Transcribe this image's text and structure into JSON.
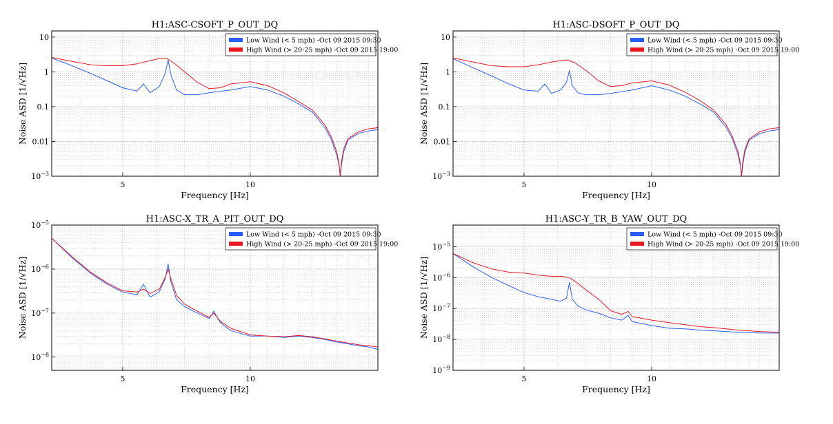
{
  "figure": {
    "legend_entries": [
      {
        "label": "Low Wind (< 5 mph) -Oct 09 2015 09:30",
        "color": "#2a5df5"
      },
      {
        "label": "High Wind (> 20-25 mph) -Oct 09 2015 19:00",
        "color": "#e81620"
      }
    ]
  },
  "chart_data": [
    {
      "type": "line",
      "title": "H1:ASC-CSOFT_P_OUT_DQ",
      "xlabel": "Frequency [Hz]",
      "ylabel": "Noise ASD [1/√Hz]",
      "xscale": "log",
      "yscale": "log",
      "xlim": [
        3.4,
        20
      ],
      "ylim": [
        0.001,
        15
      ],
      "xticks": [
        5,
        10
      ],
      "xtick_labels": [
        "5",
        "10"
      ],
      "yticks": [
        0.001,
        0.01,
        0.1,
        1,
        10
      ],
      "ytick_labels": [
        "10^-3",
        "0.01",
        "0.1",
        "1",
        "10"
      ],
      "grid": true,
      "legend_position": "top-right",
      "series": [
        {
          "name": "Low Wind (< 5 mph) -Oct 09 2015 09:30",
          "color": "#2a5df5",
          "x": [
            3.4,
            3.8,
            4.2,
            4.6,
            5,
            5.4,
            5.6,
            5.8,
            6.1,
            6.3,
            6.4,
            6.5,
            6.7,
            7,
            7.5,
            8,
            9,
            10,
            11,
            12,
            13,
            14,
            15,
            15.5,
            16,
            16.2,
            16.3,
            16.4,
            16.6,
            17,
            18,
            19,
            20
          ],
          "y": [
            2.5,
            1.5,
            0.9,
            0.55,
            0.35,
            0.28,
            0.45,
            0.25,
            0.38,
            0.9,
            2.2,
            0.8,
            0.3,
            0.22,
            0.22,
            0.25,
            0.3,
            0.38,
            0.3,
            0.2,
            0.12,
            0.07,
            0.025,
            0.012,
            0.004,
            0.002,
            0.001,
            0.002,
            0.005,
            0.011,
            0.017,
            0.02,
            0.022
          ]
        },
        {
          "name": "High Wind (> 20-25 mph) -Oct 09 2015 19:00",
          "color": "#e81620",
          "x": [
            3.4,
            3.8,
            4.2,
            4.6,
            5,
            5.4,
            5.8,
            6.1,
            6.3,
            6.4,
            6.6,
            7,
            7.5,
            8,
            8.5,
            9,
            10,
            11,
            12,
            13,
            14,
            15,
            15.5,
            16,
            16.2,
            16.3,
            16.4,
            16.6,
            17,
            18,
            19,
            20
          ],
          "y": [
            2.6,
            2.0,
            1.6,
            1.5,
            1.5,
            1.7,
            2.1,
            2.4,
            2.5,
            2.3,
            1.8,
            1.0,
            0.5,
            0.33,
            0.35,
            0.45,
            0.52,
            0.4,
            0.25,
            0.14,
            0.08,
            0.03,
            0.014,
            0.005,
            0.0022,
            0.001,
            0.0025,
            0.006,
            0.012,
            0.019,
            0.023,
            0.025
          ]
        }
      ]
    },
    {
      "type": "line",
      "title": "H1:ASC-DSOFT_P_OUT_DQ",
      "xlabel": "Frequency [Hz]",
      "ylabel": "Noise ASD [1/√Hz]",
      "xscale": "log",
      "yscale": "log",
      "xlim": [
        3.4,
        20
      ],
      "ylim": [
        0.001,
        15
      ],
      "xticks": [
        5,
        10
      ],
      "xtick_labels": [
        "5",
        "10"
      ],
      "yticks": [
        0.001,
        0.01,
        0.1,
        1,
        10
      ],
      "ytick_labels": [
        "10^-3",
        "0.01",
        "0.1",
        "1",
        "10"
      ],
      "grid": true,
      "legend_position": "top-right",
      "series": [
        {
          "name": "Low Wind (< 5 mph) -Oct 09 2015 09:30",
          "color": "#2a5df5",
          "x": [
            3.4,
            3.8,
            4.2,
            4.6,
            5,
            5.4,
            5.6,
            5.8,
            6.1,
            6.3,
            6.4,
            6.5,
            6.7,
            7,
            7.5,
            8,
            9,
            10,
            11,
            12,
            13,
            14,
            15,
            15.5,
            16,
            16.2,
            16.3,
            16.4,
            16.6,
            17,
            18,
            19,
            20
          ],
          "y": [
            2.4,
            1.3,
            0.75,
            0.45,
            0.3,
            0.28,
            0.45,
            0.24,
            0.3,
            0.5,
            1.1,
            0.4,
            0.25,
            0.22,
            0.22,
            0.24,
            0.3,
            0.4,
            0.3,
            0.2,
            0.12,
            0.07,
            0.025,
            0.012,
            0.004,
            0.002,
            0.001,
            0.002,
            0.005,
            0.011,
            0.017,
            0.02,
            0.022
          ]
        },
        {
          "name": "High Wind (> 20-25 mph) -Oct 09 2015 19:00",
          "color": "#e81620",
          "x": [
            3.4,
            3.8,
            4.2,
            4.6,
            5,
            5.4,
            5.8,
            6.1,
            6.3,
            6.4,
            6.6,
            7,
            7.5,
            8,
            8.5,
            9,
            10,
            11,
            12,
            13,
            14,
            15,
            15.5,
            16,
            16.2,
            16.3,
            16.4,
            16.6,
            17,
            18,
            19,
            20
          ],
          "y": [
            2.5,
            1.9,
            1.5,
            1.4,
            1.4,
            1.6,
            1.9,
            2.1,
            2.2,
            2.1,
            1.8,
            1.1,
            0.55,
            0.38,
            0.4,
            0.48,
            0.55,
            0.42,
            0.26,
            0.15,
            0.08,
            0.03,
            0.014,
            0.005,
            0.0022,
            0.001,
            0.0025,
            0.006,
            0.012,
            0.019,
            0.023,
            0.025
          ]
        }
      ]
    },
    {
      "type": "line",
      "title": "H1:ASC-X_TR_A_PIT_OUT_DQ",
      "xlabel": "Frequency [Hz]",
      "ylabel": "Noise ASD [1/√Hz]",
      "xscale": "log",
      "yscale": "log",
      "xlim": [
        3.4,
        20
      ],
      "ylim": [
        5e-09,
        1e-05
      ],
      "xticks": [
        5,
        10
      ],
      "xtick_labels": [
        "5",
        "10"
      ],
      "yticks": [
        1e-08,
        1e-07,
        1e-06,
        1e-05
      ],
      "ytick_labels": [
        "10^-8",
        "10^-7",
        "10^-6",
        "10^-5"
      ],
      "grid": true,
      "legend_position": "top-right",
      "series": [
        {
          "name": "Low Wind (< 5 mph) -Oct 09 2015 09:30",
          "color": "#2a5df5",
          "x": [
            3.4,
            3.8,
            4.2,
            4.6,
            5,
            5.4,
            5.6,
            5.8,
            6.1,
            6.3,
            6.4,
            6.5,
            6.7,
            7,
            7.5,
            8,
            8.2,
            8.5,
            9,
            10,
            11,
            12,
            13,
            14,
            15,
            16,
            17,
            18,
            19,
            20
          ],
          "y": [
            5e-06,
            1.8e-06,
            8e-07,
            4.5e-07,
            3e-07,
            2.6e-07,
            4.5e-07,
            2.3e-07,
            3e-07,
            6e-07,
            1.3e-06,
            5e-07,
            2e-07,
            1.4e-07,
            1e-07,
            7.5e-08,
            1.1e-07,
            6e-08,
            4e-08,
            3e-08,
            3e-08,
            2.8e-08,
            3e-08,
            2.8e-08,
            2.5e-08,
            2.2e-08,
            2e-08,
            1.8e-08,
            1.7e-08,
            1.5e-08
          ]
        },
        {
          "name": "High Wind (> 20-25 mph) -Oct 09 2015 19:00",
          "color": "#e81620",
          "x": [
            3.4,
            3.8,
            4.2,
            4.6,
            5,
            5.4,
            5.6,
            5.8,
            6.1,
            6.3,
            6.4,
            6.5,
            6.7,
            7,
            7.5,
            8,
            8.2,
            8.5,
            9,
            10,
            11,
            12,
            13,
            14,
            15,
            16,
            17,
            18,
            19,
            20
          ],
          "y": [
            5e-06,
            1.9e-06,
            8.5e-07,
            4.8e-07,
            3.2e-07,
            3e-07,
            3.5e-07,
            2.8e-07,
            3.5e-07,
            6.5e-07,
            1e-06,
            6e-07,
            2.5e-07,
            1.6e-07,
            1.1e-07,
            8e-08,
            1e-07,
            6.5e-08,
            4.5e-08,
            3.2e-08,
            3e-08,
            2.9e-08,
            3.1e-08,
            2.9e-08,
            2.6e-08,
            2.3e-08,
            2.1e-08,
            1.9e-08,
            1.8e-08,
            1.7e-08
          ]
        }
      ]
    },
    {
      "type": "line",
      "title": "H1:ASC-Y_TR_B_YAW_OUT_DQ",
      "xlabel": "Frequency [Hz]",
      "ylabel": "Noise ASD [1/√Hz]",
      "xscale": "log",
      "yscale": "log",
      "xlim": [
        3.4,
        20
      ],
      "ylim": [
        1e-09,
        5e-05
      ],
      "xticks": [
        5,
        10
      ],
      "xtick_labels": [
        "5",
        "10"
      ],
      "yticks": [
        1e-09,
        1e-08,
        1e-07,
        1e-06,
        1e-05
      ],
      "ytick_labels": [
        "10^-9",
        "10^-8",
        "10^-7",
        "10^-6",
        "10^-5"
      ],
      "grid": true,
      "legend_position": "top-right",
      "series": [
        {
          "name": "Low Wind (< 5 mph) -Oct 09 2015 09:30",
          "color": "#2a5df5",
          "x": [
            3.4,
            3.8,
            4.2,
            4.6,
            5,
            5.4,
            5.8,
            6.1,
            6.3,
            6.4,
            6.5,
            6.7,
            7,
            7.5,
            8,
            8.5,
            8.8,
            9,
            10,
            11,
            12,
            13,
            14,
            15,
            16,
            17,
            18,
            19,
            20
          ],
          "y": [
            6e-06,
            2.2e-06,
            1e-06,
            5.5e-07,
            3.3e-07,
            2.4e-07,
            2e-07,
            1.7e-07,
            2.2e-07,
            7e-07,
            2e-07,
            1.2e-07,
            9e-08,
            7e-08,
            5e-08,
            4.2e-08,
            6e-08,
            3.8e-08,
            2.8e-08,
            2.3e-08,
            2.2e-08,
            2e-08,
            1.9e-08,
            1.8e-08,
            1.7e-08,
            1.65e-08,
            1.6e-08,
            1.6e-08,
            1.6e-08
          ]
        },
        {
          "name": "High Wind (> 20-25 mph) -Oct 09 2015 19:00",
          "color": "#e81620",
          "x": [
            3.4,
            3.8,
            4.2,
            4.6,
            5,
            5.4,
            5.8,
            6.1,
            6.4,
            6.6,
            7,
            7.5,
            8,
            8.5,
            8.8,
            9,
            10,
            11,
            12,
            13,
            14,
            15,
            16,
            17,
            18,
            19,
            20
          ],
          "y": [
            6e-06,
            3e-06,
            1.9e-06,
            1.5e-06,
            1.4e-06,
            1.2e-06,
            1.1e-06,
            1.1e-06,
            1e-06,
            7.5e-07,
            4e-07,
            2e-07,
            8.5e-08,
            6.5e-08,
            8e-08,
            5.5e-08,
            4.2e-08,
            3.5e-08,
            3e-08,
            2.6e-08,
            2.4e-08,
            2.2e-08,
            2e-08,
            1.9e-08,
            1.8e-08,
            1.75e-08,
            1.7e-08
          ]
        }
      ]
    }
  ]
}
